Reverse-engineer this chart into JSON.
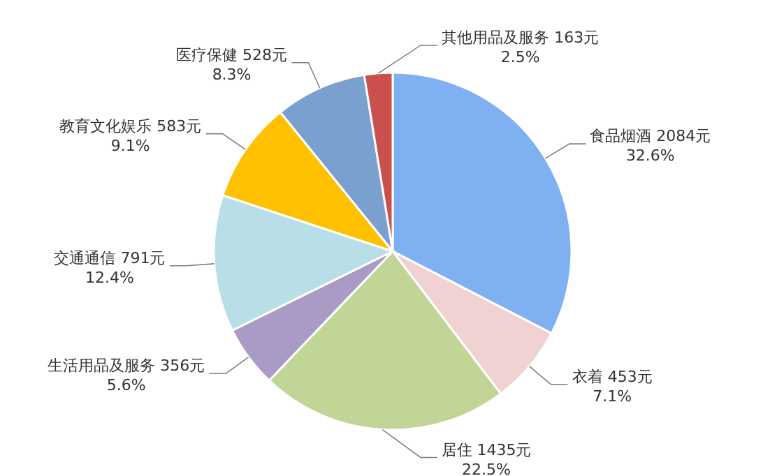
{
  "chart_data": {
    "type": "pie",
    "categories": [
      "食品烟酒",
      "衣着",
      "居住",
      "生活用品及服务",
      "交通通信",
      "教育文化娱乐",
      "医疗保健",
      "其他用品及服务"
    ],
    "values": [
      2084,
      453,
      1435,
      356,
      791,
      583,
      528,
      163
    ],
    "colors": [
      "#7fb0f2",
      "#f0d2d2",
      "#c1d597",
      "#a99bc6",
      "#b8dfe8",
      "#ffc000",
      "#7aa0cf",
      "#c9504d"
    ],
    "value_labels": [
      "2084元\n32.6%",
      "453元\n7.1%",
      "1435元\n22.5%",
      "356元\n5.6%",
      "791元\n12.4%",
      "583元\n9.1%",
      "528元\n8.3%",
      "163元\n2.5%"
    ]
  }
}
